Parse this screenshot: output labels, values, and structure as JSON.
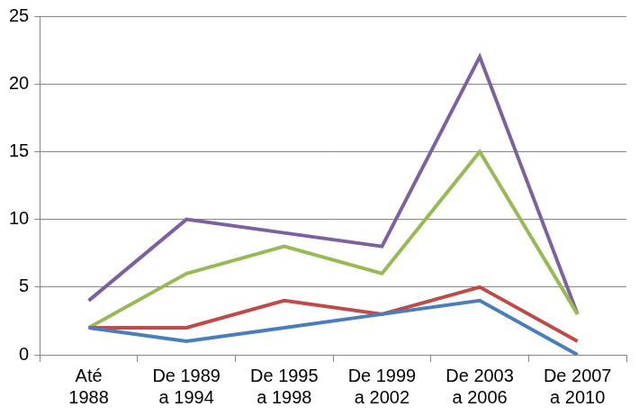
{
  "chart_data": {
    "type": "line",
    "categories": [
      "Até 1988",
      "De 1989 a 1994",
      "De 1995 a 1998",
      "De 1999 a 2002",
      "De 2003 a 2006",
      "De 2007 a 2010"
    ],
    "series": [
      {
        "color": "#4a7ebb",
        "values": [
          2,
          1,
          2,
          3,
          4,
          0
        ]
      },
      {
        "color": "#be4b48",
        "values": [
          2,
          2,
          4,
          3,
          5,
          1
        ]
      },
      {
        "color": "#98b954",
        "values": [
          2,
          6,
          8,
          6,
          15,
          3
        ]
      },
      {
        "color": "#7d60a0",
        "values": [
          4,
          10,
          9,
          8,
          22,
          3
        ]
      }
    ],
    "ylim": [
      0,
      25
    ],
    "yticks": [
      0,
      5,
      10,
      15,
      20,
      25
    ],
    "grid": true
  }
}
